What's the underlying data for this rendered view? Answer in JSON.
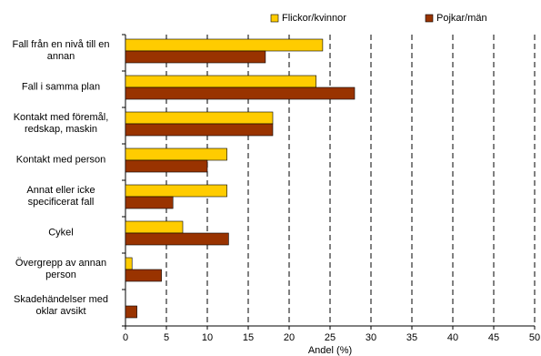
{
  "chart_data": {
    "type": "hbar",
    "categories": [
      "Fall från en nivå till en\nannan",
      "Fall i samma plan",
      "Kontakt med föremål,\nredskap, maskin",
      "Kontakt med person",
      "Annat eller icke\nspecificerat fall",
      "Cykel",
      "Övergrepp av annan\nperson",
      "Skadehändelser med\noklar avsikt"
    ],
    "series": [
      {
        "name": "Flickor/kvinnor",
        "color": "#ffcc00",
        "values": [
          24.1,
          23.3,
          18,
          12.4,
          12.4,
          7,
          0.8,
          0
        ]
      },
      {
        "name": "Pojkar/män",
        "color": "#993300",
        "values": [
          17.1,
          28,
          18,
          10,
          5.8,
          12.6,
          4.4,
          1.4
        ]
      }
    ],
    "xlabel": "Andel (%)",
    "xlim": [
      0,
      50
    ],
    "xticks": [
      0,
      5,
      10,
      15,
      20,
      25,
      30,
      35,
      40,
      45,
      50
    ],
    "grid": true
  }
}
